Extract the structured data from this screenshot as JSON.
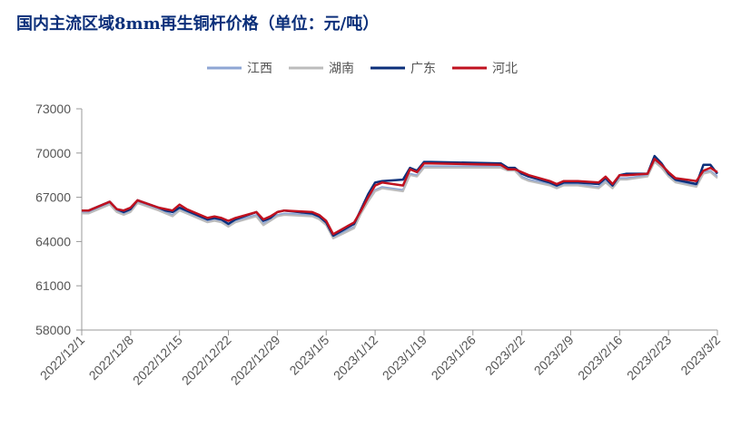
{
  "chart_data": {
    "type": "line",
    "title": "国内主流区域8mm再生铜杆价格（单位：元/吨）",
    "xlabel": "",
    "ylabel": "",
    "ylim": [
      58000,
      73000
    ],
    "yticks": [
      58000,
      61000,
      64000,
      67000,
      70000,
      73000
    ],
    "ytick_labels": [
      "58000",
      "61000",
      "64000",
      "67000",
      "70000",
      "73000"
    ],
    "xtick_labels": [
      "2022/12/1",
      "2022/12/8",
      "2022/12/15",
      "2022/12/22",
      "2022/12/29",
      "2023/1/5",
      "2023/1/12",
      "2023/1/19",
      "2023/1/26",
      "2023/2/2",
      "2023/2/9",
      "2023/2/16",
      "2023/2/23",
      "2023/3/2"
    ],
    "x": [
      "2022/12/1",
      "2022/12/2",
      "2022/12/5",
      "2022/12/6",
      "2022/12/7",
      "2022/12/8",
      "2022/12/9",
      "2022/12/12",
      "2022/12/13",
      "2022/12/14",
      "2022/12/15",
      "2022/12/16",
      "2022/12/19",
      "2022/12/20",
      "2022/12/21",
      "2022/12/22",
      "2022/12/23",
      "2022/12/26",
      "2022/12/27",
      "2022/12/28",
      "2022/12/29",
      "2022/12/30",
      "2023/1/3",
      "2023/1/4",
      "2023/1/5",
      "2023/1/6",
      "2023/1/9",
      "2023/1/10",
      "2023/1/11",
      "2023/1/12",
      "2023/1/13",
      "2023/1/16",
      "2023/1/17",
      "2023/1/18",
      "2023/1/19",
      "2023/1/20",
      "2023/1/30",
      "2023/1/31",
      "2023/2/1",
      "2023/2/2",
      "2023/2/3",
      "2023/2/6",
      "2023/2/7",
      "2023/2/8",
      "2023/2/9",
      "2023/2/10",
      "2023/2/13",
      "2023/2/14",
      "2023/2/15",
      "2023/2/16",
      "2023/2/17",
      "2023/2/20",
      "2023/2/21",
      "2023/2/22",
      "2023/2/23",
      "2023/2/24",
      "2023/2/27",
      "2023/2/28",
      "2023/3/1",
      "2023/3/2"
    ],
    "series": [
      {
        "name": "江西",
        "color": "#8ea6d4",
        "values": [
          66000,
          66000,
          66600,
          66100,
          65900,
          66100,
          66700,
          66200,
          66000,
          65800,
          66200,
          66000,
          65400,
          65500,
          65400,
          65100,
          65400,
          65800,
          65200,
          65500,
          65800,
          65900,
          65800,
          65600,
          65200,
          64300,
          65000,
          66000,
          66800,
          67500,
          67700,
          67500,
          68600,
          68500,
          69100,
          69100,
          69100,
          68900,
          68900,
          68400,
          68200,
          67900,
          67700,
          67900,
          67900,
          67900,
          67700,
          68100,
          67700,
          68300,
          68300,
          68500,
          69500,
          69100,
          68500,
          68100,
          67800,
          68700,
          68800,
          68400
        ]
      },
      {
        "name": "湖南",
        "color": "#bcbcbc",
        "values": [
          65900,
          65900,
          66500,
          66000,
          65800,
          66000,
          66600,
          66100,
          65900,
          65700,
          66100,
          65900,
          65300,
          65400,
          65300,
          65000,
          65300,
          65700,
          65100,
          65400,
          65700,
          65800,
          65700,
          65500,
          65100,
          64200,
          64900,
          65900,
          66700,
          67400,
          67600,
          67400,
          68500,
          68400,
          69000,
          69000,
          69000,
          68800,
          68800,
          68300,
          68100,
          67800,
          67600,
          67800,
          67800,
          67800,
          67600,
          68000,
          67600,
          68200,
          68200,
          68400,
          69400,
          69000,
          68400,
          68000,
          67700,
          68600,
          68700,
          68300
        ]
      },
      {
        "name": "广东",
        "color": "#0b2f7a",
        "values": [
          66100,
          66100,
          66700,
          66200,
          66000,
          66200,
          66800,
          66300,
          66100,
          66000,
          66300,
          66100,
          65500,
          65600,
          65500,
          65200,
          65500,
          66000,
          65400,
          65600,
          66000,
          66100,
          65900,
          65700,
          65300,
          64400,
          65200,
          66200,
          67200,
          68000,
          68100,
          68200,
          69000,
          68800,
          69400,
          69400,
          69300,
          69000,
          69000,
          68600,
          68400,
          68000,
          67800,
          68000,
          68000,
          68000,
          67900,
          68300,
          67800,
          68500,
          68600,
          68600,
          69800,
          69300,
          68600,
          68200,
          67900,
          69200,
          69200,
          68600
        ]
      },
      {
        "name": "河北",
        "color": "#c0111f",
        "values": [
          66100,
          66100,
          66700,
          66200,
          66100,
          66300,
          66800,
          66300,
          66200,
          66100,
          66500,
          66200,
          65600,
          65700,
          65600,
          65400,
          65600,
          66000,
          65500,
          65700,
          66000,
          66100,
          66000,
          65800,
          65400,
          64500,
          65300,
          66100,
          67000,
          67800,
          68000,
          67800,
          68900,
          68700,
          69300,
          69300,
          69200,
          68900,
          68900,
          68700,
          68500,
          68100,
          67900,
          68100,
          68100,
          68100,
          68000,
          68400,
          67900,
          68500,
          68500,
          68600,
          69600,
          69200,
          68700,
          68300,
          68100,
          68800,
          69000,
          68700
        ]
      }
    ],
    "legend_position": "top-center",
    "grid": false
  }
}
